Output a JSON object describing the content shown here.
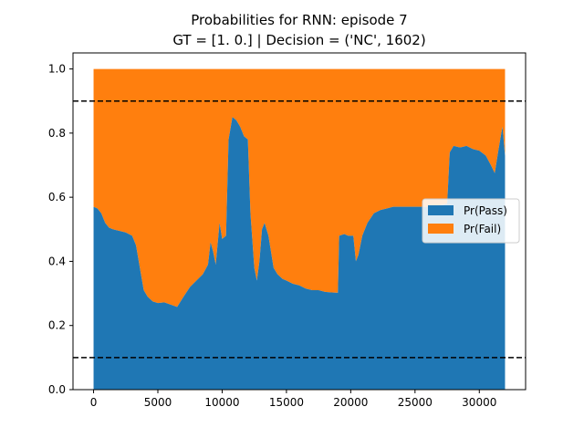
{
  "chart_data": {
    "type": "area",
    "title": "Probabilities for RNN: episode 7",
    "subtitle": "GT = [1. 0.] | Decision = ('NC', 1602)",
    "xlabel": "",
    "ylabel": "",
    "xlim": [
      -1600,
      33600
    ],
    "ylim": [
      0.0,
      1.05
    ],
    "xticks": [
      0,
      5000,
      10000,
      15000,
      20000,
      25000,
      30000
    ],
    "xtick_labels": [
      "0",
      "5000",
      "10000",
      "15000",
      "20000",
      "25000",
      "30000"
    ],
    "yticks": [
      0.0,
      0.2,
      0.4,
      0.6,
      0.8,
      1.0
    ],
    "ytick_labels": [
      "0.0",
      "0.2",
      "0.4",
      "0.6",
      "0.8",
      "1.0"
    ],
    "grid": false,
    "legend_position": "center-right",
    "stacked": true,
    "thresholds": [
      {
        "y": 0.9,
        "style": "dashed",
        "color": "#000000"
      },
      {
        "y": 0.1,
        "style": "dashed",
        "color": "#000000"
      }
    ],
    "series": [
      {
        "name": "Pr(Pass)",
        "color": "#1f77b4",
        "points": [
          [
            0,
            0.57
          ],
          [
            300,
            0.565
          ],
          [
            600,
            0.55
          ],
          [
            900,
            0.52
          ],
          [
            1200,
            0.505
          ],
          [
            1500,
            0.5
          ],
          [
            2000,
            0.495
          ],
          [
            2500,
            0.49
          ],
          [
            3000,
            0.48
          ],
          [
            3300,
            0.45
          ],
          [
            3600,
            0.38
          ],
          [
            3900,
            0.31
          ],
          [
            4200,
            0.29
          ],
          [
            4600,
            0.275
          ],
          [
            5000,
            0.27
          ],
          [
            5500,
            0.272
          ],
          [
            6000,
            0.265
          ],
          [
            6500,
            0.258
          ],
          [
            7000,
            0.29
          ],
          [
            7500,
            0.32
          ],
          [
            8000,
            0.34
          ],
          [
            8500,
            0.36
          ],
          [
            8900,
            0.39
          ],
          [
            9100,
            0.46
          ],
          [
            9300,
            0.43
          ],
          [
            9500,
            0.39
          ],
          [
            9800,
            0.52
          ],
          [
            10000,
            0.47
          ],
          [
            10300,
            0.48
          ],
          [
            10500,
            0.78
          ],
          [
            10800,
            0.85
          ],
          [
            11100,
            0.84
          ],
          [
            11400,
            0.82
          ],
          [
            11700,
            0.79
          ],
          [
            12000,
            0.78
          ],
          [
            12200,
            0.55
          ],
          [
            12500,
            0.38
          ],
          [
            12700,
            0.34
          ],
          [
            12900,
            0.4
          ],
          [
            13100,
            0.5
          ],
          [
            13300,
            0.52
          ],
          [
            13600,
            0.48
          ],
          [
            14000,
            0.38
          ],
          [
            14300,
            0.36
          ],
          [
            14700,
            0.345
          ],
          [
            15000,
            0.34
          ],
          [
            15500,
            0.33
          ],
          [
            16000,
            0.325
          ],
          [
            16500,
            0.315
          ],
          [
            17000,
            0.31
          ],
          [
            17500,
            0.31
          ],
          [
            18000,
            0.305
          ],
          [
            18500,
            0.303
          ],
          [
            19000,
            0.302
          ],
          [
            19100,
            0.48
          ],
          [
            19500,
            0.485
          ],
          [
            19800,
            0.48
          ],
          [
            20200,
            0.48
          ],
          [
            20400,
            0.4
          ],
          [
            20600,
            0.42
          ],
          [
            20900,
            0.48
          ],
          [
            21300,
            0.52
          ],
          [
            21800,
            0.55
          ],
          [
            22300,
            0.56
          ],
          [
            22800,
            0.565
          ],
          [
            23300,
            0.57
          ],
          [
            24000,
            0.57
          ],
          [
            25000,
            0.57
          ],
          [
            26000,
            0.57
          ],
          [
            27000,
            0.575
          ],
          [
            27500,
            0.58
          ],
          [
            27700,
            0.74
          ],
          [
            28000,
            0.76
          ],
          [
            28500,
            0.755
          ],
          [
            29000,
            0.76
          ],
          [
            29500,
            0.75
          ],
          [
            30000,
            0.745
          ],
          [
            30500,
            0.73
          ],
          [
            30900,
            0.7
          ],
          [
            31200,
            0.675
          ],
          [
            31500,
            0.75
          ],
          [
            31800,
            0.82
          ],
          [
            32000,
            0.73
          ]
        ]
      },
      {
        "name": "Pr(Fail)",
        "color": "#ff7f0e",
        "note_stack": "fills from Pr(Pass) up to 1.0",
        "top": 1.0
      }
    ]
  }
}
